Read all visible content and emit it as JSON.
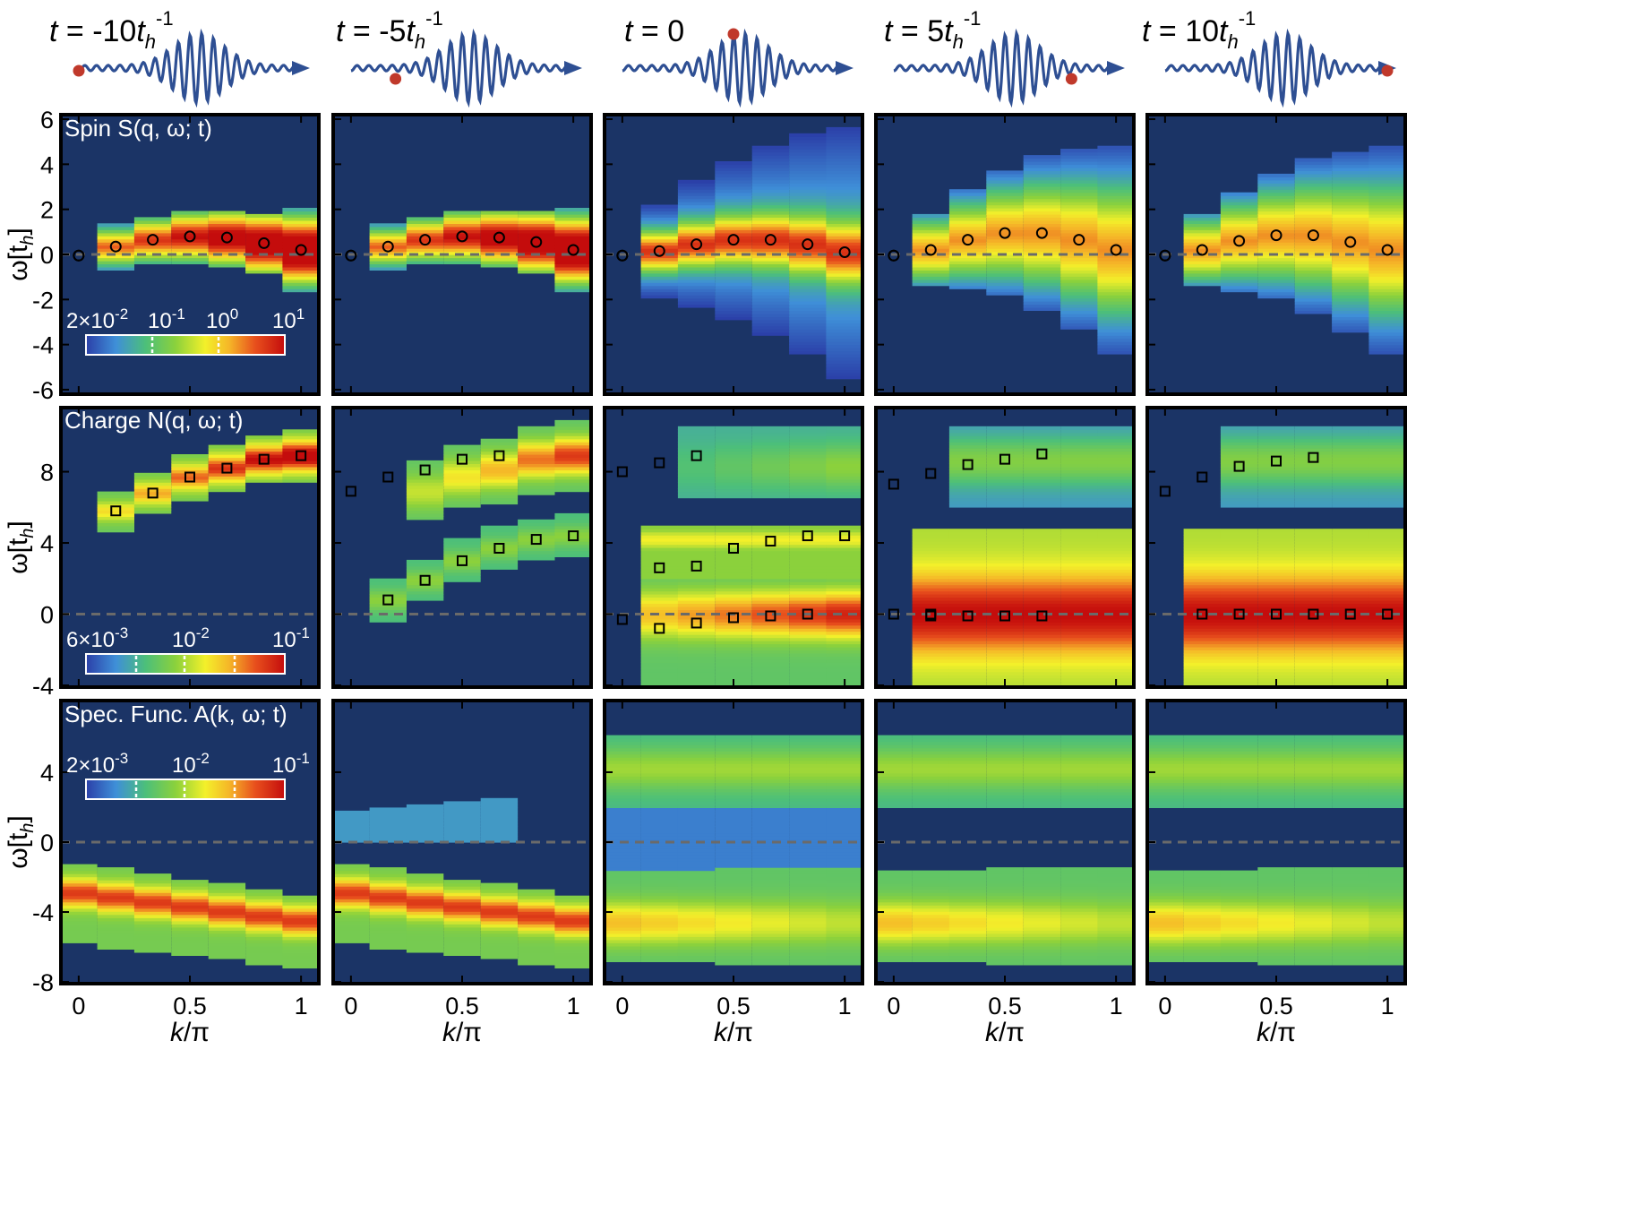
{
  "figure": {
    "times": [
      "t = -10t",
      "t = -5t",
      "t = 0",
      "t = 5t",
      "t = 10t"
    ],
    "time_subscript": "h",
    "time_superscript": "-1",
    "time_marker_phase": [
      0.0,
      0.2,
      0.5,
      0.8,
      1.0
    ],
    "xlabel": "k/π",
    "ylabel": "ω[t",
    "ylabel_subscript": "h",
    "ylabel_close": "]",
    "xticks": [
      "0",
      "0.5",
      "1"
    ],
    "background_color": "#1b3466",
    "pulse_color": "#2e4f93",
    "marker_color": "#c0392b"
  },
  "chart_data": [
    {
      "type": "heatmap",
      "name": "spin",
      "title": "Spin S(q, ω; t)",
      "xlabel": "k/π",
      "ylabel": "ω[t_h]",
      "xlim": [
        -0.08,
        1.08
      ],
      "ylim": [
        -6.2,
        6.2
      ],
      "yticks": [
        "6",
        "4",
        "2",
        "0",
        "-2",
        "-4",
        "-6"
      ],
      "ytick_values": [
        6,
        4,
        2,
        0,
        -2,
        -4,
        -6
      ],
      "colorbar_labels": [
        "2×10-2",
        "10-1",
        "100",
        "101"
      ],
      "k": [
        0,
        0.1667,
        0.3333,
        0.5,
        0.6667,
        0.8333,
        1.0
      ],
      "peaks_by_time": [
        [
          -0.05,
          0.35,
          0.65,
          0.8,
          0.75,
          0.5,
          0.2
        ],
        [
          -0.05,
          0.35,
          0.65,
          0.8,
          0.75,
          0.55,
          0.2
        ],
        [
          -0.05,
          0.15,
          0.45,
          0.65,
          0.65,
          0.45,
          0.1
        ],
        [
          -0.05,
          0.2,
          0.65,
          0.95,
          0.95,
          0.65,
          0.2
        ],
        [
          -0.05,
          0.2,
          0.6,
          0.85,
          0.85,
          0.55,
          0.2
        ]
      ]
    },
    {
      "type": "heatmap",
      "name": "charge",
      "title": "Charge N(q, ω; t)",
      "xlabel": "k/π",
      "ylabel": "ω[t_h]",
      "xlim": [
        -0.08,
        1.08
      ],
      "ylim": [
        -4.1,
        11.6
      ],
      "yticks": [
        "8",
        "4",
        "0",
        "-4"
      ],
      "ytick_values": [
        8,
        4,
        0,
        -4
      ],
      "colorbar_labels": [
        "6×10-3",
        "10-2",
        "10-1"
      ],
      "k": [
        0,
        0.1667,
        0.3333,
        0.5,
        0.6667,
        0.8333,
        1.0
      ],
      "peaks_by_time": [
        [
          null,
          5.8,
          6.8,
          7.7,
          8.2,
          8.7,
          8.9
        ],
        [
          null,
          0.8,
          1.9,
          3.0,
          3.7,
          4.2,
          4.4,
          null,
          6.9,
          7.7,
          8.1,
          8.7,
          8.9
        ],
        [
          null,
          2.6,
          2.7,
          3.7,
          4.1,
          4.4,
          4.4,
          null,
          -0.3,
          -0.8,
          -0.5,
          -0.2,
          -0.1,
          0.0,
          null,
          null,
          null,
          8.0,
          8.5,
          8.9
        ],
        [
          null,
          0.0,
          null,
          0.0,
          -0.1,
          -0.1,
          -0.1,
          -0.1,
          null,
          7.3,
          7.9,
          8.4,
          8.7,
          9.0
        ],
        [
          null,
          0.0,
          0.0,
          0.0,
          0.0,
          0.0,
          0.0,
          null,
          6.9,
          7.7,
          8.3,
          8.6,
          8.8
        ]
      ]
    },
    {
      "type": "heatmap",
      "name": "spectral",
      "title": "Spec. Func. A(k, ω; t)",
      "xlabel": "k/π",
      "ylabel": "ω[t_h]",
      "xlim": [
        -0.08,
        1.08
      ],
      "ylim": [
        -8.1,
        8.1
      ],
      "yticks": [
        "4",
        "0",
        "-4",
        "-8"
      ],
      "ytick_values": [
        4,
        0,
        -4,
        -8
      ],
      "colorbar_labels": [
        "2×10-3",
        "10-2",
        "10-1"
      ],
      "k": [
        0,
        0.1667,
        0.3333,
        0.5,
        0.6667,
        0.8333,
        1.0
      ]
    }
  ]
}
